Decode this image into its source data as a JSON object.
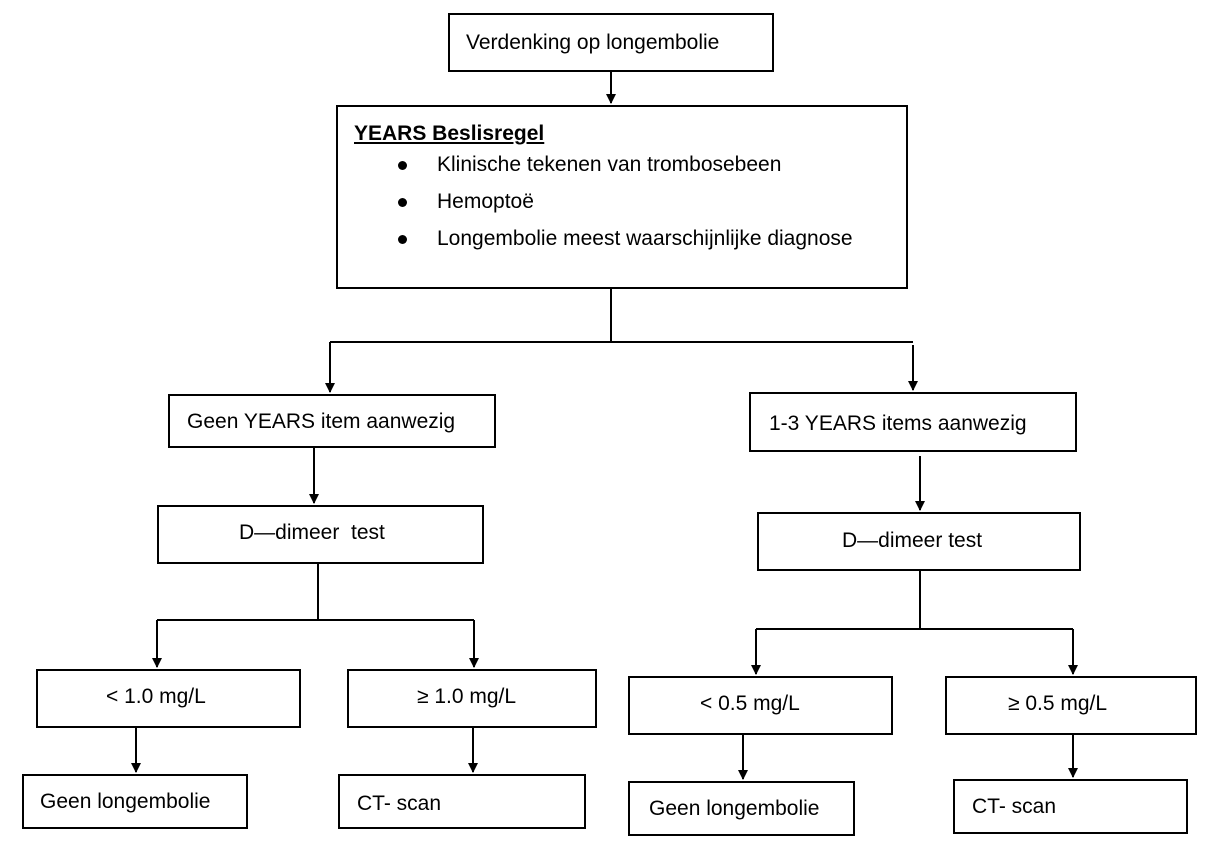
{
  "start": {
    "label": "Verdenking op longembolie"
  },
  "rule": {
    "title": "YEARS Beslisregel",
    "criteria": [
      "Klinische tekenen van trombosebeen",
      "Hemoptoë",
      "Longembolie meest waarschijnlijke diagnose"
    ]
  },
  "left_branch": {
    "condition": "Geen YEARS item aanwezig",
    "test": "D—dimeer  test",
    "low": {
      "threshold": "< 1.0 mg/L",
      "outcome": "Geen longembolie"
    },
    "high": {
      "threshold": "≥ 1.0 mg/L",
      "outcome": "CT- scan"
    }
  },
  "right_branch": {
    "condition": "1-3 YEARS items aanwezig",
    "test": "D—dimeer test",
    "low": {
      "threshold": "< 0.5 mg/L",
      "outcome": "Geen longembolie"
    },
    "high": {
      "threshold": "≥ 0.5 mg/L",
      "outcome": "CT- scan"
    }
  }
}
